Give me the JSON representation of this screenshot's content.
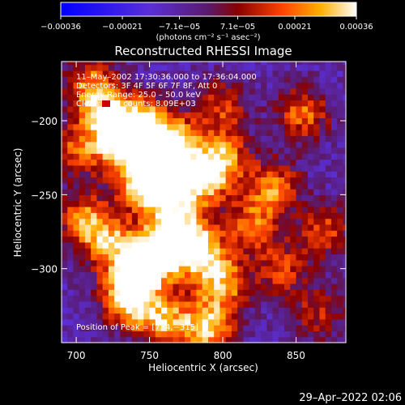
{
  "chart_data": {
    "type": "heatmap",
    "title": "Reconstructed RHESSI Image",
    "xlabel": "Heliocentric X (arcsec)",
    "ylabel": "Heliocentric Y (arcsec)",
    "xlim": [
      690,
      884
    ],
    "ylim": [
      -350,
      -160
    ],
    "x_ticks": [
      700,
      750,
      800,
      850
    ],
    "y_ticks": [
      -200,
      -250,
      -300
    ],
    "x_tick_labels": [
      "700",
      "750",
      "800",
      "850"
    ],
    "y_tick_labels": [
      "−200",
      "−250",
      "−300"
    ],
    "colorbar": {
      "min": -0.00036,
      "max": 0.00036,
      "ticks": [
        -0.00036,
        -0.00021,
        -7.1e-05,
        7.1e-05,
        0.00021,
        0.00036
      ],
      "tick_labels": [
        "−0.00036",
        "−0.00021",
        "−7.1e−05",
        "7.1e−05",
        "0.00021",
        "0.00036"
      ],
      "units": "(photons cm⁻² s⁻¹ asec⁻²)"
    },
    "annotations": [
      "11–May–2002 17:30:36.000 to 17:36:04.000",
      "Detectors: 3F 4F 5F 6F 7F 8F, Att 0",
      "Energy Range: 25.0 – 50.0 keV",
      "Clean      Total counts: 8.09E+03"
    ],
    "peak_label": "Position of Peak = [734,−315]",
    "peak_position": [
      734,
      -315
    ],
    "footer_timestamp": "29–Apr–2022 02:06",
    "hot_spots": [
      {
        "x": 720,
        "y": -195,
        "v": 0.00022
      },
      {
        "x": 730,
        "y": -215,
        "v": 0.00028
      },
      {
        "x": 745,
        "y": -200,
        "v": 0.00025
      },
      {
        "x": 765,
        "y": -215,
        "v": 0.00035
      },
      {
        "x": 760,
        "y": -245,
        "v": 0.00033
      },
      {
        "x": 745,
        "y": -240,
        "v": 0.0003
      },
      {
        "x": 785,
        "y": -240,
        "v": 0.00028
      },
      {
        "x": 800,
        "y": -225,
        "v": 0.00024
      },
      {
        "x": 770,
        "y": -275,
        "v": 0.00032
      },
      {
        "x": 755,
        "y": -290,
        "v": 0.00034
      },
      {
        "x": 740,
        "y": -300,
        "v": 0.00026
      },
      {
        "x": 720,
        "y": -280,
        "v": 0.00022
      },
      {
        "x": 705,
        "y": -265,
        "v": 0.00018
      },
      {
        "x": 735,
        "y": -320,
        "v": 0.00033
      },
      {
        "x": 760,
        "y": -335,
        "v": 0.00026
      },
      {
        "x": 790,
        "y": -340,
        "v": 0.0003
      },
      {
        "x": 800,
        "y": -310,
        "v": 0.00024
      },
      {
        "x": 785,
        "y": -290,
        "v": 0.00027
      },
      {
        "x": 835,
        "y": -245,
        "v": 0.00022
      },
      {
        "x": 855,
        "y": -195,
        "v": 0.0002
      },
      {
        "x": 870,
        "y": -275,
        "v": 0.00016
      },
      {
        "x": 820,
        "y": -270,
        "v": 0.00018
      },
      {
        "x": 710,
        "y": -175,
        "v": 0.0002
      },
      {
        "x": 800,
        "y": -190,
        "v": 0.00015
      },
      {
        "x": 840,
        "y": -300,
        "v": 0.00014
      },
      {
        "x": 700,
        "y": -220,
        "v": 0.00016
      },
      {
        "x": 865,
        "y": -330,
        "v": 0.00012
      }
    ]
  }
}
